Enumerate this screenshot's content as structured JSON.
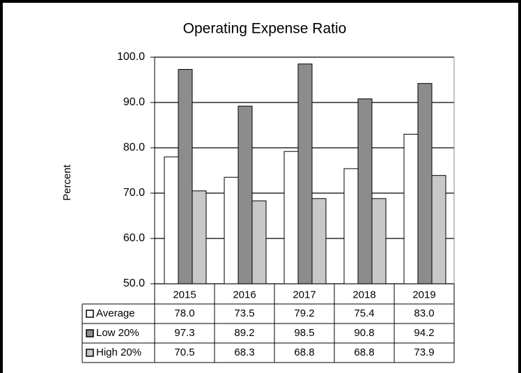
{
  "chart_data": {
    "type": "bar",
    "title": "Operating Expense Ratio",
    "y_label": "Percent",
    "categories": [
      "2015",
      "2016",
      "2017",
      "2018",
      "2019"
    ],
    "series": [
      {
        "name": "Average",
        "color": "#ffffff",
        "values": [
          78.0,
          73.5,
          79.2,
          75.4,
          83.0
        ],
        "value_labels": [
          "78.0",
          "73.5",
          "79.2",
          "75.4",
          "83.0"
        ]
      },
      {
        "name": "Low 20%",
        "color": "#8c8c8c",
        "values": [
          97.3,
          89.2,
          98.5,
          90.8,
          94.2
        ],
        "value_labels": [
          "97.3",
          "89.2",
          "98.5",
          "90.8",
          "94.2"
        ]
      },
      {
        "name": "High 20%",
        "color": "#c8c8c8",
        "values": [
          70.5,
          68.3,
          68.8,
          68.8,
          73.9
        ],
        "value_labels": [
          "70.5",
          "68.3",
          "68.8",
          "68.8",
          "73.9"
        ]
      }
    ],
    "ylim": [
      50,
      100
    ],
    "yticks": [
      {
        "value": 50,
        "label": "50.0"
      },
      {
        "value": 60,
        "label": "60.0"
      },
      {
        "value": 70,
        "label": "70.0"
      },
      {
        "value": 80,
        "label": "80.0"
      },
      {
        "value": 90,
        "label": "90.0"
      },
      {
        "value": 100,
        "label": "100.0"
      }
    ],
    "grid": true
  }
}
